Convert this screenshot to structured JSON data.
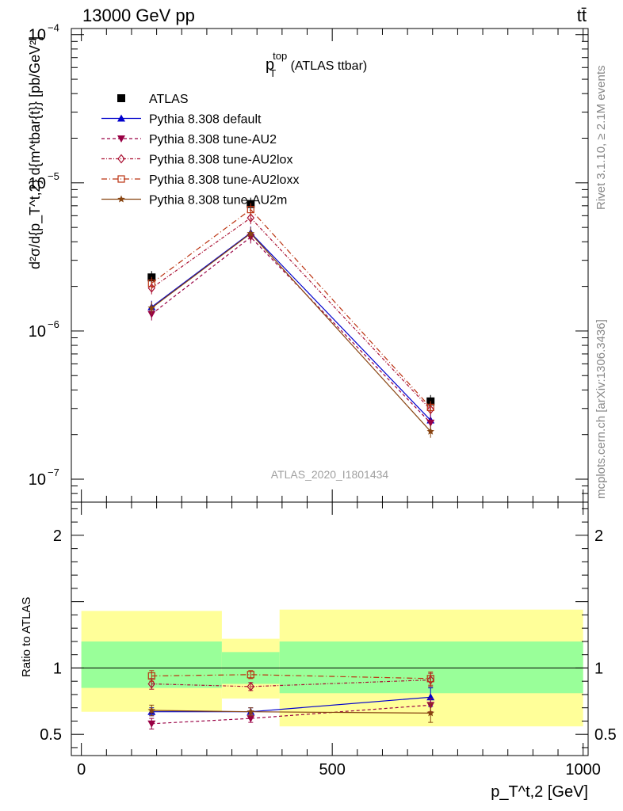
{
  "header": {
    "left": "13000 GeV pp",
    "right": "tt̄"
  },
  "side_labels": {
    "rivet": "Rivet 3.1.10, ≥ 2.1M events",
    "mcplots": "mcplots.cern.ch [arXiv:1306.3436]"
  },
  "title": {
    "main": "p",
    "sup": "top",
    "sub": "T",
    "suffix": " (ATLAS ttbar)"
  },
  "watermark": "ATLAS_2020_I1801434",
  "ylabel_main": "d²σ/d{p_T^t,2} d{m^tbar{t}} [pb/GeV²]",
  "ylabel_ratio": "Ratio to ATLAS",
  "xlabel": "p_T^t,2 [GeV]",
  "colors": {
    "atlas": "#000000",
    "default": "#0000cc",
    "au2": "#990044",
    "au2lox": "#aa1133",
    "au2loxx": "#bb3311",
    "au2m": "#884411",
    "band_inner": "#99ff99",
    "band_outer": "#ffff99"
  },
  "chart_data": [
    {
      "type": "line",
      "ylog": true,
      "xlim": [
        -20,
        1010
      ],
      "ylim": [
        7e-08,
        0.00011
      ],
      "yticks": [
        {
          "value": 1e-07,
          "label": "10",
          "exp": "−7"
        },
        {
          "value": 1e-06,
          "label": "10",
          "exp": "−6"
        },
        {
          "value": 1e-05,
          "label": "10",
          "exp": "−5"
        },
        {
          "value": 0.0001,
          "label": "10",
          "exp": "−4"
        }
      ],
      "x": [
        140,
        337.5,
        696
      ],
      "legend": [
        {
          "key": "atlas",
          "label": "ATLAS"
        },
        {
          "key": "default",
          "label": "Pythia 8.308 default"
        },
        {
          "key": "au2",
          "label": "Pythia 8.308 tune-AU2"
        },
        {
          "key": "au2lox",
          "label": "Pythia 8.308 tune-AU2lox"
        },
        {
          "key": "au2loxx",
          "label": "Pythia 8.308 tune-AU2loxx"
        },
        {
          "key": "au2m",
          "label": "Pythia 8.308 tune-AU2m"
        }
      ],
      "series": [
        {
          "key": "atlas",
          "marker": "square",
          "dash": "none",
          "values": [
            2.3e-06,
            7.2e-06,
            3.35e-07
          ]
        },
        {
          "key": "default",
          "marker": "triangle-up",
          "dash": "none",
          "values": [
            1.45e-06,
            4.6e-06,
            2.5e-07
          ]
        },
        {
          "key": "au2",
          "marker": "triangle-down",
          "dash": "4,3",
          "values": [
            1.3e-06,
            4.3e-06,
            2.4e-07
          ]
        },
        {
          "key": "au2lox",
          "marker": "diamond-open",
          "dash": "4,2,1,2",
          "values": [
            1.95e-06,
            5.8e-06,
            2.95e-07
          ]
        },
        {
          "key": "au2loxx",
          "marker": "square-open",
          "dash": "7,3,1,3",
          "values": [
            2.1e-06,
            6.6e-06,
            3.05e-07
          ]
        },
        {
          "key": "au2m",
          "marker": "star",
          "dash": "none",
          "values": [
            1.43e-06,
            4.55e-06,
            2.1e-07
          ]
        }
      ]
    },
    {
      "type": "line",
      "xlim": [
        -20,
        1010
      ],
      "ylim": [
        0.34,
        2.25
      ],
      "yticks": [
        0.5,
        1,
        2
      ],
      "xticks": [
        0,
        500,
        1000
      ],
      "bands": [
        {
          "x0": 0,
          "x1": 280,
          "inner": [
            0.85,
            1.2
          ],
          "outer": [
            0.67,
            1.43
          ]
        },
        {
          "x0": 280,
          "x1": 395,
          "inner": [
            0.88,
            1.12
          ],
          "outer": [
            0.77,
            1.22
          ]
        },
        {
          "x0": 395,
          "x1": 1000,
          "inner": [
            0.81,
            1.2
          ],
          "outer": [
            0.56,
            1.44
          ]
        }
      ],
      "x": [
        140,
        337.5,
        696
      ],
      "series": [
        {
          "key": "default",
          "values": [
            0.67,
            0.67,
            0.78
          ],
          "err": [
            0.03,
            0.03,
            0.07
          ]
        },
        {
          "key": "au2",
          "values": [
            0.58,
            0.62,
            0.72
          ],
          "err": [
            0.04,
            0.03,
            0.05
          ]
        },
        {
          "key": "au2lox",
          "values": [
            0.88,
            0.86,
            0.91
          ],
          "err": [
            0.04,
            0.03,
            0.05
          ]
        },
        {
          "key": "au2loxx",
          "values": [
            0.94,
            0.95,
            0.92
          ],
          "err": [
            0.04,
            0.03,
            0.05
          ]
        },
        {
          "key": "au2m",
          "values": [
            0.68,
            0.67,
            0.66
          ],
          "err": [
            0.04,
            0.03,
            0.07
          ]
        }
      ]
    }
  ]
}
